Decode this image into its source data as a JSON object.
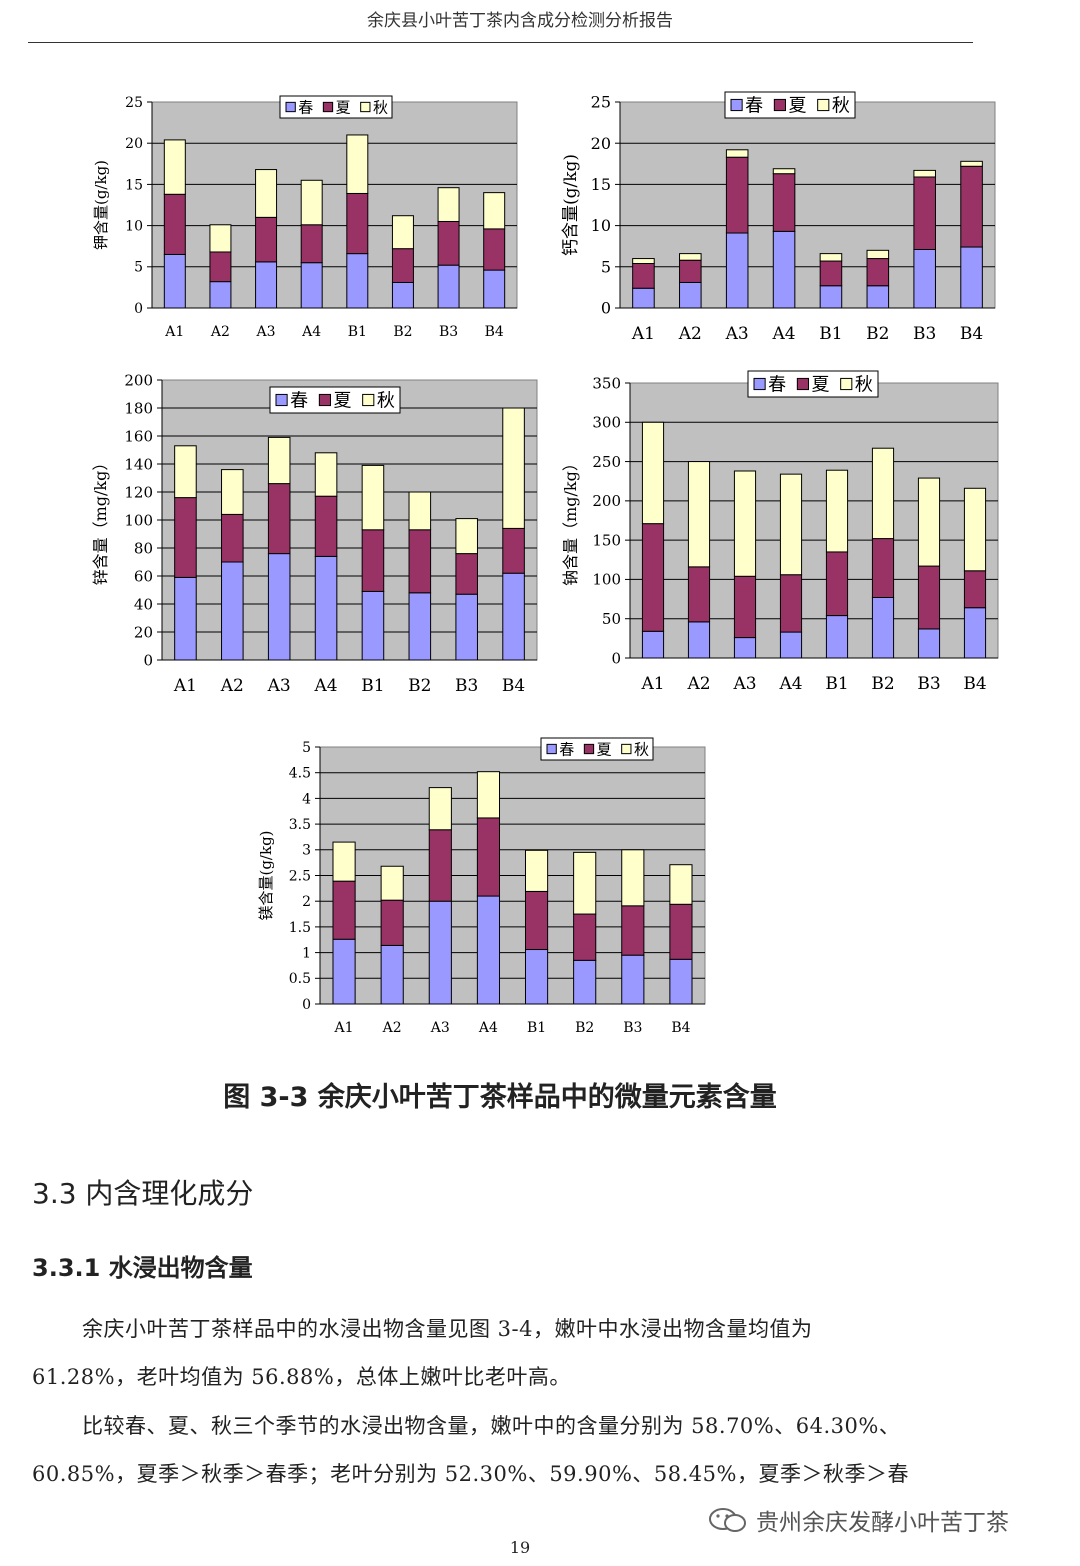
{
  "header": {
    "title": "余庆县小叶苦丁茶内含成分检测分析报告"
  },
  "legend_labels": [
    "春",
    "夏",
    "秋"
  ],
  "colors": {
    "spring": "#9999ff",
    "summer": "#993366",
    "autumn": "#ffffcc",
    "plot_bg": "#c0c0c0"
  },
  "chart_data": [
    {
      "type": "bar",
      "stacked": true,
      "categories": [
        "A1",
        "A2",
        "A3",
        "A4",
        "B1",
        "B2",
        "B3",
        "B4"
      ],
      "ylabel": "钾含量(g/kg)",
      "ylim": [
        0,
        25
      ],
      "yticks": [
        0,
        5,
        10,
        15,
        20,
        25
      ],
      "grid": true,
      "legend_position": "top",
      "series": [
        {
          "name": "春",
          "values": [
            6.5,
            3.2,
            5.6,
            5.5,
            6.6,
            3.1,
            5.2,
            4.6
          ]
        },
        {
          "name": "夏",
          "values": [
            7.3,
            3.6,
            5.4,
            4.6,
            7.3,
            4.1,
            5.3,
            5.0
          ]
        },
        {
          "name": "秋",
          "values": [
            6.6,
            3.3,
            5.8,
            5.4,
            7.1,
            4.0,
            4.1,
            4.4
          ]
        }
      ]
    },
    {
      "type": "bar",
      "stacked": true,
      "categories": [
        "A1",
        "A2",
        "A3",
        "A4",
        "B1",
        "B2",
        "B3",
        "B4"
      ],
      "ylabel": "钙含量(g/kg)",
      "ylim": [
        0,
        25
      ],
      "yticks": [
        0,
        5,
        10,
        15,
        20,
        25
      ],
      "grid": true,
      "legend_position": "top",
      "series": [
        {
          "name": "春",
          "values": [
            2.4,
            3.1,
            9.1,
            9.3,
            2.7,
            2.7,
            7.1,
            7.4
          ]
        },
        {
          "name": "夏",
          "values": [
            3.0,
            2.7,
            9.2,
            7.0,
            3.0,
            3.3,
            8.8,
            9.8
          ]
        },
        {
          "name": "秋",
          "values": [
            0.6,
            0.8,
            0.9,
            0.6,
            0.9,
            1.0,
            0.8,
            0.6
          ]
        }
      ]
    },
    {
      "type": "bar",
      "stacked": true,
      "categories": [
        "A1",
        "A2",
        "A3",
        "A4",
        "B1",
        "B2",
        "B3",
        "B4"
      ],
      "ylabel": "锌含量（mg/kg）",
      "ylim": [
        0,
        200
      ],
      "yticks": [
        0,
        20,
        40,
        60,
        80,
        100,
        120,
        140,
        160,
        180,
        200
      ],
      "grid": true,
      "legend_position": "top",
      "series": [
        {
          "name": "春",
          "values": [
            59,
            70,
            76,
            74,
            49,
            48,
            47,
            62
          ]
        },
        {
          "name": "夏",
          "values": [
            57,
            34,
            50,
            43,
            44,
            45,
            29,
            32
          ]
        },
        {
          "name": "秋",
          "values": [
            37,
            32,
            33,
            31,
            46,
            27,
            25,
            86
          ]
        }
      ]
    },
    {
      "type": "bar",
      "stacked": true,
      "categories": [
        "A1",
        "A2",
        "A3",
        "A4",
        "B1",
        "B2",
        "B3",
        "B4"
      ],
      "ylabel": "钠含量（mg/kg）",
      "ylim": [
        0,
        350
      ],
      "yticks": [
        0,
        50,
        100,
        150,
        200,
        250,
        300,
        350
      ],
      "grid": true,
      "legend_position": "top",
      "series": [
        {
          "name": "春",
          "values": [
            34,
            46,
            26,
            33,
            54,
            77,
            37,
            64
          ]
        },
        {
          "name": "夏",
          "values": [
            137,
            70,
            78,
            73,
            81,
            75,
            80,
            47
          ]
        },
        {
          "name": "秋",
          "values": [
            129,
            134,
            134,
            128,
            104,
            115,
            112,
            105
          ]
        }
      ]
    },
    {
      "type": "bar",
      "stacked": true,
      "categories": [
        "A1",
        "A2",
        "A3",
        "A4",
        "B1",
        "B2",
        "B3",
        "B4"
      ],
      "ylabel": "镁含量(g/kg)",
      "ylim": [
        0,
        5
      ],
      "yticks": [
        0,
        0.5,
        1,
        1.5,
        2,
        2.5,
        3,
        3.5,
        4,
        4.5,
        5
      ],
      "grid": true,
      "legend_position": "top",
      "series": [
        {
          "name": "春",
          "values": [
            1.26,
            1.14,
            2.0,
            2.1,
            1.06,
            0.85,
            0.95,
            0.87
          ]
        },
        {
          "name": "夏",
          "values": [
            1.13,
            0.88,
            1.39,
            1.52,
            1.13,
            0.9,
            0.96,
            1.07
          ]
        },
        {
          "name": "秋",
          "values": [
            0.76,
            0.66,
            0.82,
            0.9,
            0.8,
            1.2,
            1.09,
            0.77
          ]
        }
      ]
    }
  ],
  "caption": "图 3-3  余庆小叶苦丁茶样品中的微量元素含量",
  "section": {
    "title": "3.3  内含理化成分"
  },
  "subsection": {
    "title": "3.3.1  水浸出物含量"
  },
  "paragraphs": [
    "余庆小叶苦丁茶样品中的水浸出物含量见图 3-4，嫩叶中水浸出物含量均值为",
    "61.28%，老叶均值为 56.88%，总体上嫩叶比老叶高。",
    "比较春、夏、秋三个季节的水浸出物含量，嫩叶中的含量分别为 58.70%、64.30%、",
    "60.85%，夏季＞秋季＞春季；老叶分别为 52.30%、59.90%、58.45%，夏季＞秋季＞春"
  ],
  "page_number": "19",
  "watermark": "贵州余庆发酵小叶苦丁茶"
}
